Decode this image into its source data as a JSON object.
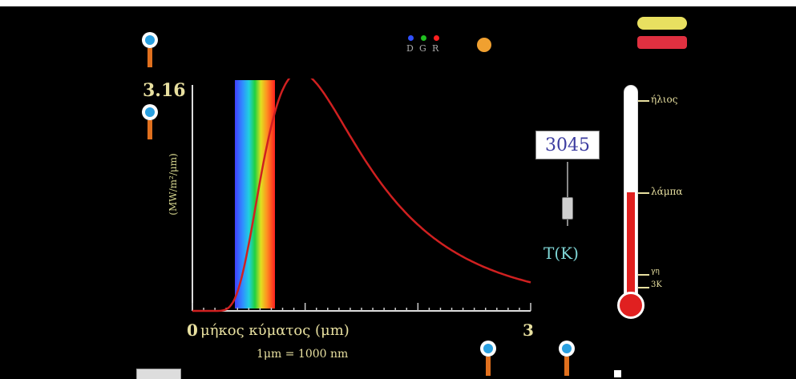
{
  "graph": {
    "y_max_label": "3.16",
    "y_axis_label": "(MW/m²/μm)",
    "x_min_label": "0",
    "x_max_label": "3",
    "x_axis_label": "μήκος κύματος (μm)",
    "unit_note": "1μm = 1000 nm"
  },
  "temperature": {
    "value": "3045",
    "label": "T(K)",
    "slider_fraction": 0.33
  },
  "legend": {
    "items": [
      {
        "label": "D",
        "color": "#3050ff"
      },
      {
        "label": "G",
        "color": "#20c020"
      },
      {
        "label": "R",
        "color": "#ff2020"
      }
    ],
    "star_color": "#f0a030"
  },
  "buttons": {
    "top_yellow": "",
    "top_red": "",
    "reset": ""
  },
  "thermometer": {
    "labels": [
      "ήλιος",
      "λάμπα",
      "γη",
      "3K"
    ]
  },
  "zoom": {
    "bottom_left": "",
    "bottom_right": ""
  },
  "checkbox_label": "",
  "colors": {
    "curve": "#d02020",
    "background": "#000000",
    "label": "#e8e0a0",
    "thermometer_fill": "#e02020"
  }
}
